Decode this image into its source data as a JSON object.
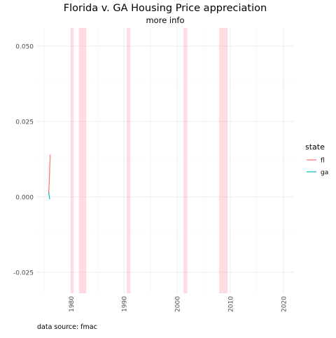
{
  "chart_data": {
    "type": "line",
    "title": "Florida v. GA Housing Price appreciation",
    "subtitle": "more info",
    "caption": "data source: fmac",
    "xlabel": "",
    "ylabel": "",
    "xlim": [
      1973.5,
      2022
    ],
    "ylim": [
      -0.032,
      0.056
    ],
    "x_ticks": [
      1980,
      1990,
      2000,
      2010,
      2020
    ],
    "x_tick_labels": [
      "1980",
      "1990",
      "2000",
      "2010",
      "2020"
    ],
    "y_ticks": [
      -0.025,
      0,
      0.025,
      0.05
    ],
    "y_tick_labels": [
      "-0.025",
      "0.000",
      "0.025",
      "0.050"
    ],
    "grid": true,
    "legend": {
      "title": "state",
      "position": "right"
    },
    "recessions": [
      {
        "start": 1980.0,
        "end": 1980.5
      },
      {
        "start": 1981.5,
        "end": 1982.9
      },
      {
        "start": 1990.5,
        "end": 1991.2
      },
      {
        "start": 2001.2,
        "end": 2001.9
      },
      {
        "start": 2007.9,
        "end": 2009.5
      }
    ],
    "series": [
      {
        "name": "fl",
        "color": "#F8766D",
        "x": [
          1975.8,
          1975.9,
          1976.0,
          1976.1
        ],
        "y": [
          0.001,
          0.004,
          0.009,
          0.014
        ]
      },
      {
        "name": "ga",
        "color": "#00BFC4",
        "x": [
          1975.8,
          1975.9,
          1976.0
        ],
        "y": [
          0.0015,
          0.0005,
          -0.0008
        ]
      }
    ],
    "colors": {
      "recession_fill": "#FFC0CB",
      "grid_major": "#EBEBEB",
      "grid_minor": "#F5F5F5",
      "text": "#4D4D4D",
      "title": "#000000"
    }
  }
}
